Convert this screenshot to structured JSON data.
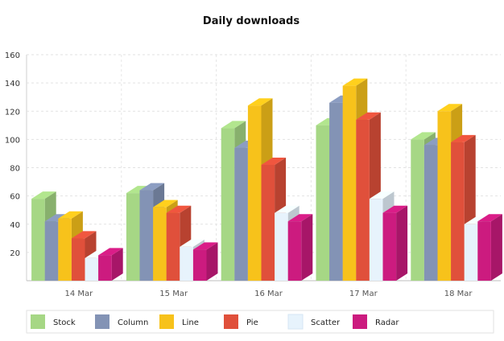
{
  "chart_data": {
    "type": "bar",
    "title": "Daily downloads",
    "xlabel": "",
    "ylabel": "",
    "categories": [
      "14 Mar",
      "15 Mar",
      "16 Mar",
      "17 Mar",
      "18 Mar"
    ],
    "yticks": [
      20,
      40,
      60,
      80,
      100,
      120,
      140,
      160
    ],
    "ylim": [
      0,
      160
    ],
    "grid": true,
    "legend_position": "bottom",
    "series": [
      {
        "name": "Stock",
        "color": "#a6d785",
        "values": [
          58,
          62,
          108,
          110,
          100
        ]
      },
      {
        "name": "Column",
        "color": "#8393b5",
        "values": [
          42,
          64,
          94,
          126,
          96
        ]
      },
      {
        "name": "Line",
        "color": "#f7c21b",
        "values": [
          44,
          52,
          124,
          138,
          120
        ]
      },
      {
        "name": "Pie",
        "color": "#e0503b",
        "values": [
          30,
          48,
          82,
          114,
          98
        ]
      },
      {
        "name": "Scatter",
        "color": "#e7f3fc",
        "values": [
          16,
          24,
          48,
          58,
          40
        ]
      },
      {
        "name": "Radar",
        "color": "#cc1b7f",
        "values": [
          18,
          22,
          42,
          48,
          42
        ]
      }
    ]
  }
}
